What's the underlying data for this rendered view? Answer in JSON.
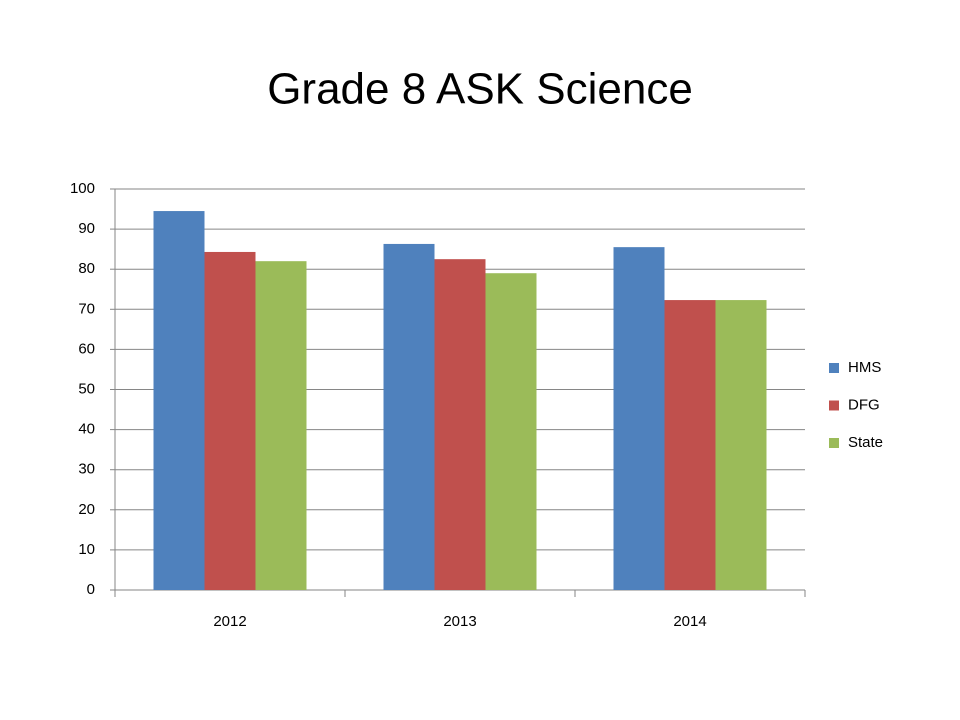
{
  "chart_data": {
    "type": "bar",
    "title": "Grade 8 ASK Science",
    "categories": [
      "2012",
      "2013",
      "2014"
    ],
    "series": [
      {
        "name": "HMS",
        "color": "#4f81bd",
        "values": [
          94.5,
          86.3,
          85.5
        ]
      },
      {
        "name": "DFG",
        "color": "#c0504d",
        "values": [
          84.3,
          82.5,
          72.3
        ]
      },
      {
        "name": "State",
        "color": "#9bbb59",
        "values": [
          82.0,
          79.0,
          72.3
        ]
      }
    ],
    "ylim": [
      0,
      100
    ],
    "yticks": [
      0,
      10,
      20,
      30,
      40,
      50,
      60,
      70,
      80,
      90,
      100
    ],
    "grid": true,
    "legend": "right"
  }
}
